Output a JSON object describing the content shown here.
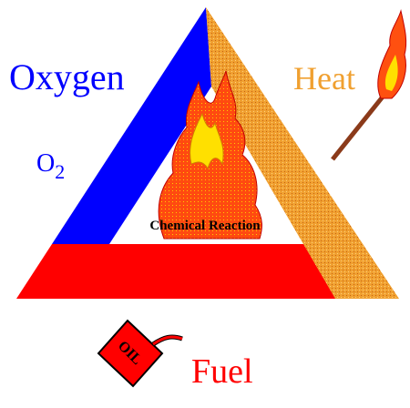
{
  "labels": {
    "oxygen": "Oxygen",
    "formula": {
      "base": "O",
      "subscript": "2"
    },
    "heat": "Heat",
    "reaction": "Chemical Reaction",
    "fuel": "Fuel",
    "can": "OIL"
  }
}
